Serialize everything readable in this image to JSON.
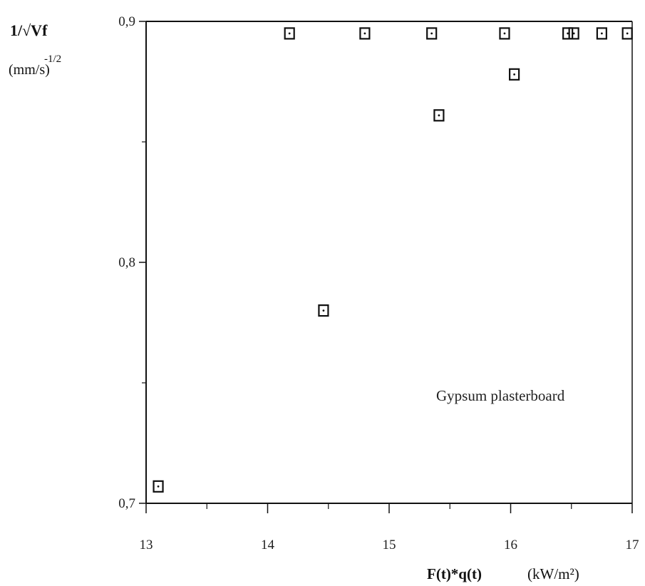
{
  "chart_data": {
    "type": "scatter",
    "xlabel": "F(t)*q(t)",
    "xunit": "(kW/m²)",
    "ylabel": "1/√Vf",
    "yunit": "(mm/s)",
    "yunit_exponent": "-1/2",
    "xlim": [
      13,
      17
    ],
    "ylim": [
      0.7,
      0.9
    ],
    "x_ticks": [
      13,
      14,
      15,
      16,
      17
    ],
    "x_tick_labels": [
      "13",
      "14",
      "15",
      "16",
      "17"
    ],
    "y_ticks": [
      0.7,
      0.8,
      0.9
    ],
    "y_tick_labels": [
      "0,7",
      "0,8",
      "0,9"
    ],
    "grid": false,
    "annotation": "Gypsum plasterboard",
    "series": [
      {
        "marker": "square",
        "color": "#111111",
        "points": [
          {
            "x": 13.1,
            "y": 0.707
          },
          {
            "x": 14.46,
            "y": 0.78
          },
          {
            "x": 14.18,
            "y": 0.895
          },
          {
            "x": 14.8,
            "y": 0.895
          },
          {
            "x": 15.35,
            "y": 0.895
          },
          {
            "x": 15.95,
            "y": 0.895
          },
          {
            "x": 16.47,
            "y": 0.895
          },
          {
            "x": 16.52,
            "y": 0.895
          },
          {
            "x": 16.75,
            "y": 0.895
          },
          {
            "x": 16.96,
            "y": 0.895
          },
          {
            "x": 15.41,
            "y": 0.861
          },
          {
            "x": 16.03,
            "y": 0.878
          }
        ]
      }
    ]
  }
}
